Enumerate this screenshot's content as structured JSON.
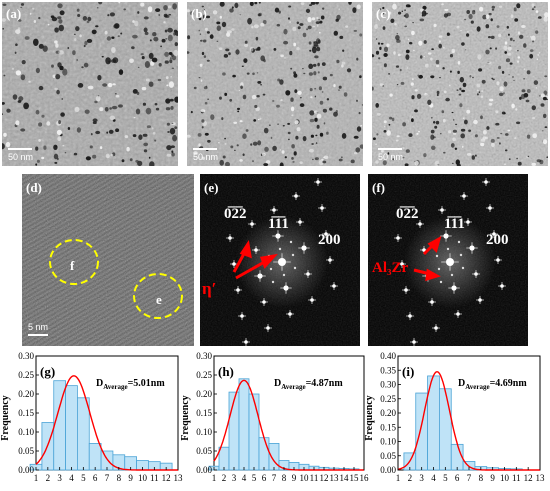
{
  "figure": {
    "tem_panels": [
      {
        "label": "(a)",
        "scale": "50 nm"
      },
      {
        "label": "(b)",
        "scale": "50 nm"
      },
      {
        "label": "(c)",
        "scale": "50 nm"
      }
    ],
    "hrtem_panel": {
      "label": "(d)",
      "scale": "5 nm",
      "circle_labels": [
        "f",
        "e"
      ],
      "ring_color": "#ffff00"
    },
    "fft_panels": [
      {
        "label": "(e)",
        "spot_labels": [
          "0̅2̅2",
          "1̅1̅1",
          "200"
        ],
        "spot_labels_plain": [
          "022",
          "111",
          "200"
        ],
        "phase": "η′",
        "arrow_color": "#ff0000"
      },
      {
        "label": "(f)",
        "spot_labels": [
          "0̅2̅2",
          "1̅1̅1",
          "200"
        ],
        "spot_labels_plain": [
          "022",
          "111",
          "200"
        ],
        "phase": "Al₃Zr",
        "arrow_color": "#ff0000"
      }
    ]
  },
  "chart_data": [
    {
      "type": "bar",
      "label": "(g)",
      "annotation": "D",
      "annotation_sub": "Average",
      "annotation_value": "=5.01nm",
      "ylabel": "Frequency",
      "ylim": [
        0,
        0.3
      ],
      "yticks": [
        "0.00",
        "0.05",
        "0.10",
        "0.15",
        "0.20",
        "0.25",
        "0.30"
      ],
      "xticks": [
        "1",
        "2",
        "3",
        "4",
        "5",
        "6",
        "7",
        "8",
        "9",
        "10",
        "11",
        "12",
        "13"
      ],
      "bins": [
        1,
        2,
        3,
        4,
        5,
        6,
        7,
        8,
        9,
        10,
        11,
        12
      ],
      "values": [
        0.015,
        0.125,
        0.235,
        0.222,
        0.19,
        0.07,
        0.05,
        0.04,
        0.035,
        0.025,
        0.022,
        0.018
      ],
      "fit": {
        "mean": 4.2,
        "sigma": 1.35,
        "peak": 0.248
      },
      "bar_color": "#bfe3f7",
      "fit_color": "#ff0000"
    },
    {
      "type": "bar",
      "label": "(h)",
      "annotation": "D",
      "annotation_sub": "Average",
      "annotation_value": "=4.87nm",
      "ylabel": "Frequency",
      "ylim": [
        0,
        0.3
      ],
      "yticks": [
        "0.00",
        "0.05",
        "0.10",
        "0.15",
        "0.20",
        "0.25",
        "0.30"
      ],
      "xticks": [
        "1",
        "2",
        "3",
        "4",
        "5",
        "6",
        "7",
        "8",
        "9",
        "10",
        "11",
        "12",
        "13",
        "14",
        "15",
        "16"
      ],
      "bins": [
        1,
        2,
        3,
        4,
        5,
        6,
        7,
        8,
        9,
        10,
        11,
        12,
        13,
        14,
        15
      ],
      "values": [
        0.01,
        0.06,
        0.205,
        0.24,
        0.2,
        0.085,
        0.07,
        0.025,
        0.02,
        0.015,
        0.01,
        0.007,
        0.005,
        0.004,
        0.003
      ],
      "fit": {
        "mean": 4.0,
        "sigma": 1.4,
        "peak": 0.236
      },
      "bar_color": "#bfe3f7",
      "fit_color": "#ff0000"
    },
    {
      "type": "bar",
      "label": "(i)",
      "annotation": "D",
      "annotation_sub": "Average",
      "annotation_value": "=4.69nm",
      "ylabel": "Frequency",
      "ylim": [
        0,
        0.4
      ],
      "yticks": [
        "0.00",
        "0.05",
        "0.10",
        "0.15",
        "0.20",
        "0.25",
        "0.30",
        "0.35",
        "0.40"
      ],
      "xticks": [
        "1",
        "2",
        "3",
        "4",
        "5",
        "6",
        "7",
        "8",
        "9",
        "10",
        "11",
        "12",
        "13"
      ],
      "bins": [
        1,
        2,
        3,
        4,
        5,
        6,
        7,
        8,
        9,
        10,
        11,
        12
      ],
      "values": [
        0.0,
        0.06,
        0.27,
        0.33,
        0.285,
        0.09,
        0.03,
        0.012,
        0.008,
        0.005,
        0.004,
        0.0
      ],
      "fit": {
        "mean": 4.3,
        "sigma": 1.05,
        "peak": 0.345
      },
      "bar_color": "#bfe3f7",
      "fit_color": "#ff0000"
    }
  ]
}
